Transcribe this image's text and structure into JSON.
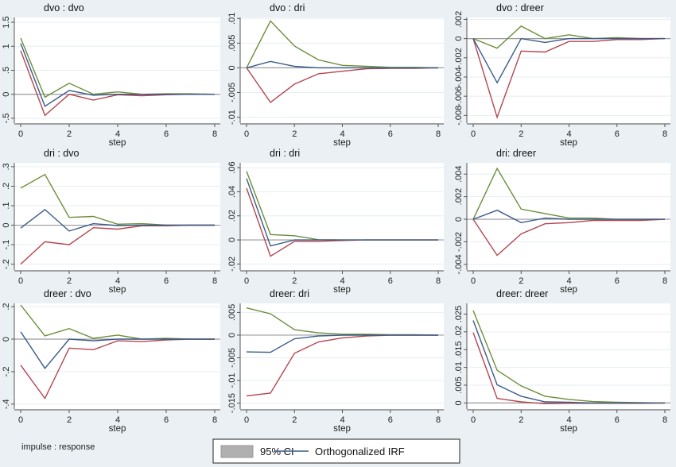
{
  "chart_data": {
    "type": "line",
    "note_label": "impulse : response",
    "legend": {
      "placement": "bottom",
      "items": [
        {
          "label": "95% CI",
          "kind": "band",
          "color": "#b0b0b0"
        },
        {
          "label": "Orthogonalized IRF",
          "kind": "line",
          "color": "#3b5b8a"
        }
      ]
    },
    "colors": {
      "upper": "#6b8e3a",
      "irf": "#3b5b8a",
      "lower": "#b5454f",
      "plot_bg": "#ffffff",
      "page_bg": "#eaf0f3"
    },
    "x": [
      0,
      1,
      2,
      3,
      4,
      5,
      6,
      7,
      8
    ],
    "xticks": [
      "0",
      "2",
      "4",
      "6",
      "8"
    ],
    "xlabel": "step",
    "panels": [
      {
        "title": "dvo : dvo",
        "ylim": [
          -0.6,
          1.6
        ],
        "yticks": [
          -0.5,
          0,
          0.5,
          1,
          1.5
        ],
        "yticklabels": [
          "-.5",
          "0",
          ".5",
          "1",
          "1.5"
        ],
        "upper": [
          1.17,
          -0.06,
          0.23,
          0,
          0.05,
          0,
          0.01,
          0.01,
          0
        ],
        "irf": [
          1.06,
          -0.25,
          0.08,
          -0.02,
          0,
          0,
          0,
          0,
          0
        ],
        "lower": [
          0.91,
          -0.44,
          0,
          -0.12,
          -0.01,
          -0.03,
          -0.01,
          0,
          0
        ]
      },
      {
        "title": "dvo : dri",
        "ylim": [
          -0.0112,
          0.0102
        ],
        "yticks": [
          -0.01,
          -0.005,
          0,
          0.005,
          0.01
        ],
        "yticklabels": [
          "-.01",
          "-.005",
          "0",
          ".005",
          ".01"
        ],
        "upper": [
          0,
          0.0095,
          0.0044,
          0.0016,
          0.0005,
          0.0003,
          0.0001,
          0.0001,
          0
        ],
        "irf": [
          0,
          0.0013,
          0.0003,
          0,
          0,
          0,
          0,
          0,
          0
        ],
        "lower": [
          0,
          -0.007,
          -0.0033,
          -0.0012,
          -0.0007,
          -0.0002,
          -0.0001,
          -0.0001,
          0
        ]
      },
      {
        "title": "dvo : dreer",
        "ylim": [
          -0.0088,
          0.0022
        ],
        "yticks": [
          -0.008,
          -0.006,
          -0.004,
          -0.002,
          0,
          0.002
        ],
        "yticklabels": [
          "-.008",
          "-.006",
          "-.004",
          "-.002",
          "0",
          ".002"
        ],
        "upper": [
          0,
          -0.001,
          0.0013,
          0,
          0.0004,
          0,
          0.0001,
          0,
          0
        ],
        "irf": [
          0,
          -0.0046,
          0,
          -0.0004,
          0,
          0,
          0,
          0,
          0
        ],
        "lower": [
          0,
          -0.0082,
          -0.0013,
          -0.0014,
          -0.0003,
          -0.0003,
          -0.0001,
          -0.0001,
          0
        ]
      },
      {
        "title": "dri : dvo",
        "ylim": [
          -0.23,
          0.32
        ],
        "yticks": [
          -0.2,
          -0.1,
          0,
          0.1,
          0.2,
          0.3
        ],
        "yticklabels": [
          "-.2",
          "-.1",
          "0",
          ".1",
          ".2",
          ".3"
        ],
        "upper": [
          0.19,
          0.26,
          0.04,
          0.045,
          0.005,
          0.008,
          0,
          0,
          0
        ],
        "irf": [
          -0.015,
          0.08,
          -0.03,
          0.008,
          -0.002,
          0,
          0,
          0,
          0
        ],
        "lower": [
          -0.2,
          -0.085,
          -0.1,
          -0.013,
          -0.02,
          -0.003,
          -0.003,
          0,
          0
        ]
      },
      {
        "title": "dri : dri",
        "ylim": [
          -0.025,
          0.064
        ],
        "yticks": [
          -0.02,
          0,
          0.02,
          0.04,
          0.06
        ],
        "yticklabels": [
          "-.02",
          "0",
          ".02",
          ".04",
          ".06"
        ],
        "upper": [
          0.057,
          0.0045,
          0.0035,
          0.0002,
          0,
          0,
          0,
          0,
          0
        ],
        "irf": [
          0.051,
          -0.005,
          0,
          0,
          0,
          0,
          0,
          0,
          0
        ],
        "lower": [
          0.043,
          -0.0135,
          -0.0012,
          -0.0012,
          -0.0005,
          0,
          0,
          0,
          0
        ]
      },
      {
        "title": "dri: dreer",
        "ylim": [
          -0.0045,
          0.005
        ],
        "yticks": [
          -0.004,
          -0.002,
          0,
          0.002,
          0.004
        ],
        "yticklabels": [
          "-.004",
          "-.002",
          "0",
          ".002",
          ".004"
        ],
        "upper": [
          0,
          0.0045,
          0.0009,
          0.0005,
          0.0001,
          0.0001,
          0,
          0,
          0
        ],
        "irf": [
          0,
          0.0008,
          -0.0003,
          0.0001,
          0,
          0,
          0,
          0,
          0
        ],
        "lower": [
          0,
          -0.0032,
          -0.0013,
          -0.0004,
          -0.0003,
          -0.0001,
          -0.0001,
          -0.0001,
          0
        ]
      },
      {
        "title": "dreer : dvo",
        "ylim": [
          -0.43,
          0.22
        ],
        "yticks": [
          -0.4,
          -0.2,
          0,
          0.2
        ],
        "yticklabels": [
          "-.4",
          "-.2",
          "0",
          ".2"
        ],
        "upper": [
          0.21,
          0.02,
          0.065,
          0.005,
          0.025,
          0,
          0.005,
          0,
          0
        ],
        "irf": [
          0.045,
          -0.18,
          0,
          -0.01,
          0,
          0,
          0,
          0,
          0
        ],
        "lower": [
          -0.16,
          -0.365,
          -0.055,
          -0.065,
          -0.01,
          -0.015,
          -0.005,
          0,
          0
        ]
      },
      {
        "title": "dreer: dri",
        "ylim": [
          -0.0163,
          0.007
        ],
        "yticks": [
          -0.015,
          -0.01,
          -0.005,
          0,
          0.005
        ],
        "yticklabels": [
          "-.015",
          "-.01",
          "-.005",
          "0",
          ".005"
        ],
        "upper": [
          0.006,
          0.0047,
          0.0012,
          0.0005,
          0.0002,
          0.0002,
          0.0001,
          0.0001,
          0
        ],
        "irf": [
          -0.0037,
          -0.0038,
          -0.0008,
          -0.0002,
          0,
          0,
          0,
          0,
          0
        ],
        "lower": [
          -0.0134,
          -0.0128,
          -0.004,
          -0.0015,
          -0.0006,
          -0.0002,
          0,
          0,
          0
        ]
      },
      {
        "title": "dreer: dreer",
        "ylim": [
          -0.0017,
          0.028
        ],
        "yticks": [
          0,
          0.005,
          0.01,
          0.015,
          0.02,
          0.025
        ],
        "yticklabels": [
          "0",
          ".005",
          ".01",
          ".015",
          ".02",
          ".025"
        ],
        "upper": [
          0.026,
          0.0092,
          0.0048,
          0.0019,
          0.001,
          0.0004,
          0.0002,
          0.0001,
          0
        ],
        "irf": [
          0.0232,
          0.0051,
          0.0019,
          0.0003,
          0.0002,
          0,
          0,
          0,
          0
        ],
        "lower": [
          0.0198,
          0.0013,
          0.0003,
          -0.0002,
          -0.0001,
          -0.0001,
          -0.0001,
          -0.0001,
          0
        ]
      }
    ]
  }
}
